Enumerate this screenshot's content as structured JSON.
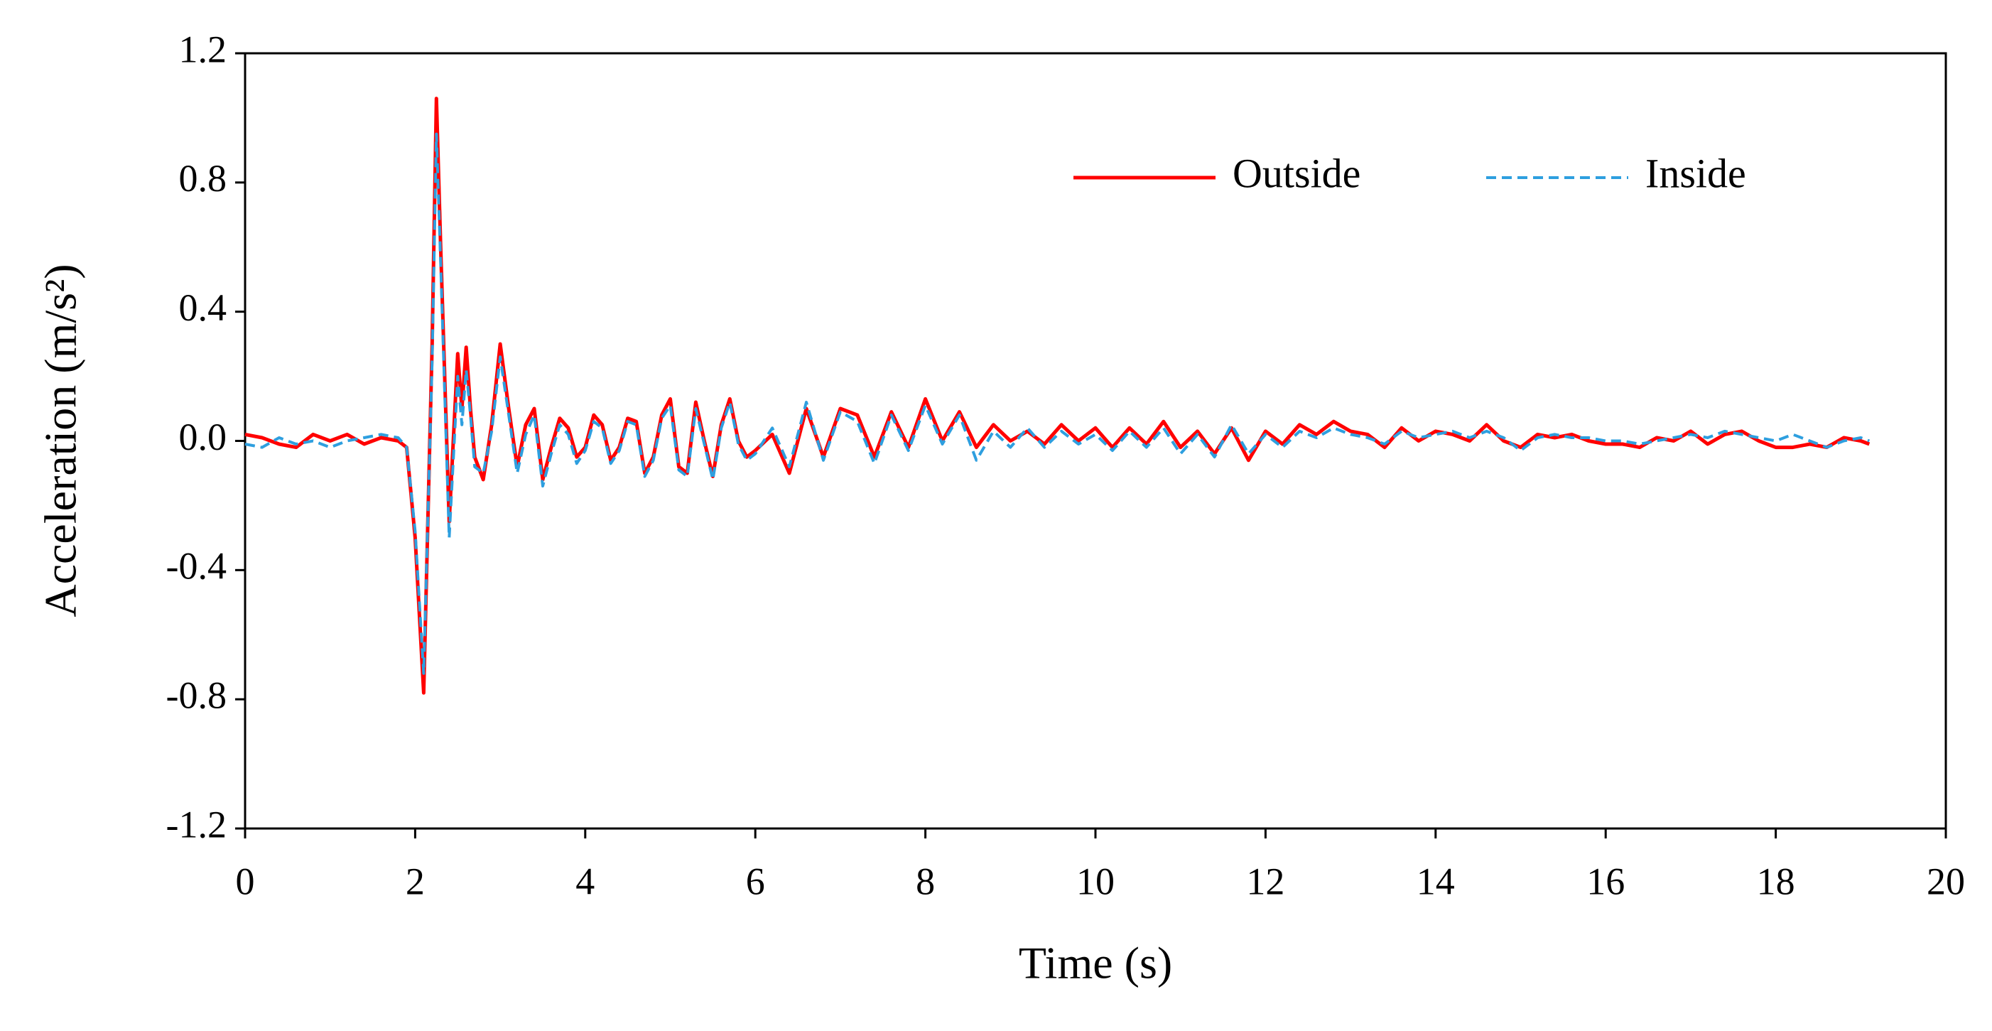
{
  "chart_data": {
    "type": "line",
    "xlabel": "Time (s)",
    "ylabel": "Acceleration (m/s²)",
    "x": [
      0,
      0.2,
      0.4,
      0.6,
      0.8,
      1.0,
      1.2,
      1.4,
      1.6,
      1.8,
      1.9,
      2.0,
      2.1,
      2.2,
      2.25,
      2.3,
      2.4,
      2.5,
      2.55,
      2.6,
      2.65,
      2.7,
      2.8,
      2.9,
      3.0,
      3.1,
      3.2,
      3.3,
      3.4,
      3.5,
      3.6,
      3.7,
      3.8,
      3.9,
      4.0,
      4.1,
      4.2,
      4.3,
      4.4,
      4.5,
      4.6,
      4.7,
      4.8,
      4.9,
      5.0,
      5.1,
      5.2,
      5.3,
      5.4,
      5.5,
      5.6,
      5.7,
      5.8,
      5.9,
      6.0,
      6.2,
      6.4,
      6.6,
      6.8,
      7.0,
      7.2,
      7.4,
      7.6,
      7.8,
      8.0,
      8.2,
      8.4,
      8.6,
      8.8,
      9.0,
      9.2,
      9.4,
      9.6,
      9.8,
      10.0,
      10.2,
      10.4,
      10.6,
      10.8,
      11.0,
      11.2,
      11.4,
      11.6,
      11.8,
      12.0,
      12.2,
      12.4,
      12.6,
      12.8,
      13.0,
      13.2,
      13.4,
      13.6,
      13.8,
      14.0,
      14.2,
      14.4,
      14.6,
      14.8,
      15.0,
      15.2,
      15.4,
      15.6,
      15.8,
      16.0,
      16.2,
      16.4,
      16.6,
      16.8,
      17.0,
      17.2,
      17.4,
      17.6,
      17.8,
      18.0,
      18.2,
      18.4,
      18.6,
      18.8,
      19.0,
      19.1
    ],
    "series": [
      {
        "name": "Outside",
        "color": "#ff0000",
        "dashed": false,
        "values": [
          0.02,
          0.01,
          -0.01,
          -0.02,
          0.02,
          0.0,
          0.02,
          -0.01,
          0.01,
          0.0,
          -0.02,
          -0.3,
          -0.78,
          0.3,
          1.06,
          0.6,
          -0.25,
          0.27,
          0.1,
          0.29,
          0.1,
          -0.05,
          -0.12,
          0.05,
          0.3,
          0.1,
          -0.08,
          0.05,
          0.1,
          -0.12,
          -0.02,
          0.07,
          0.04,
          -0.05,
          -0.02,
          0.08,
          0.05,
          -0.06,
          -0.02,
          0.07,
          0.06,
          -0.1,
          -0.05,
          0.08,
          0.13,
          -0.08,
          -0.1,
          0.12,
          0.0,
          -0.11,
          0.05,
          0.13,
          0.0,
          -0.05,
          -0.03,
          0.02,
          -0.1,
          0.1,
          -0.05,
          0.1,
          0.08,
          -0.05,
          0.09,
          -0.02,
          0.13,
          0.0,
          0.09,
          -0.02,
          0.05,
          0.0,
          0.03,
          -0.01,
          0.05,
          0.0,
          0.04,
          -0.02,
          0.04,
          -0.01,
          0.06,
          -0.02,
          0.03,
          -0.04,
          0.04,
          -0.06,
          0.03,
          -0.01,
          0.05,
          0.02,
          0.06,
          0.03,
          0.02,
          -0.02,
          0.04,
          0.0,
          0.03,
          0.02,
          0.0,
          0.05,
          0.0,
          -0.02,
          0.02,
          0.01,
          0.02,
          0.0,
          -0.01,
          -0.01,
          -0.02,
          0.01,
          0.0,
          0.03,
          -0.01,
          0.02,
          0.03,
          0.0,
          -0.02,
          -0.02,
          -0.01,
          -0.02,
          0.01,
          0.0,
          -0.01
        ]
      },
      {
        "name": "Inside",
        "color": "#2e9fdf",
        "dashed": true,
        "values": [
          -0.01,
          -0.02,
          0.01,
          -0.01,
          0.0,
          -0.02,
          0.0,
          0.01,
          0.02,
          0.01,
          -0.02,
          -0.28,
          -0.72,
          0.25,
          0.95,
          0.55,
          -0.3,
          0.2,
          0.05,
          0.22,
          0.08,
          -0.08,
          -0.1,
          0.03,
          0.26,
          0.08,
          -0.1,
          0.02,
          0.08,
          -0.14,
          -0.04,
          0.05,
          0.02,
          -0.07,
          -0.03,
          0.06,
          0.04,
          -0.07,
          -0.03,
          0.06,
          0.05,
          -0.11,
          -0.06,
          0.07,
          0.11,
          -0.09,
          -0.11,
          0.1,
          -0.01,
          -0.12,
          0.04,
          0.12,
          -0.01,
          -0.06,
          -0.04,
          0.04,
          -0.08,
          0.12,
          -0.06,
          0.09,
          0.06,
          -0.07,
          0.08,
          -0.03,
          0.11,
          -0.01,
          0.08,
          -0.06,
          0.03,
          -0.02,
          0.04,
          -0.02,
          0.03,
          -0.01,
          0.02,
          -0.03,
          0.03,
          -0.02,
          0.04,
          -0.04,
          0.02,
          -0.05,
          0.05,
          -0.04,
          0.02,
          -0.02,
          0.03,
          0.01,
          0.04,
          0.02,
          0.01,
          -0.01,
          0.03,
          0.01,
          0.02,
          0.03,
          0.01,
          0.03,
          0.01,
          -0.03,
          0.01,
          0.02,
          0.01,
          0.01,
          0.0,
          0.0,
          -0.01,
          0.0,
          0.01,
          0.02,
          0.01,
          0.03,
          0.02,
          0.01,
          0.0,
          0.02,
          0.0,
          -0.02,
          0.0,
          0.01,
          0.0
        ]
      }
    ],
    "xlim": [
      0,
      20
    ],
    "xticks": [
      0,
      2,
      4,
      6,
      8,
      10,
      12,
      14,
      16,
      18,
      20
    ],
    "ylim": [
      -1.2,
      1.2
    ],
    "yticks": [
      -1.2,
      -0.8,
      -0.4,
      {
        "value": 0,
        "label": "0.0"
      },
      0.4,
      0.8,
      1.2
    ],
    "grid": false,
    "legend": "top-right"
  }
}
